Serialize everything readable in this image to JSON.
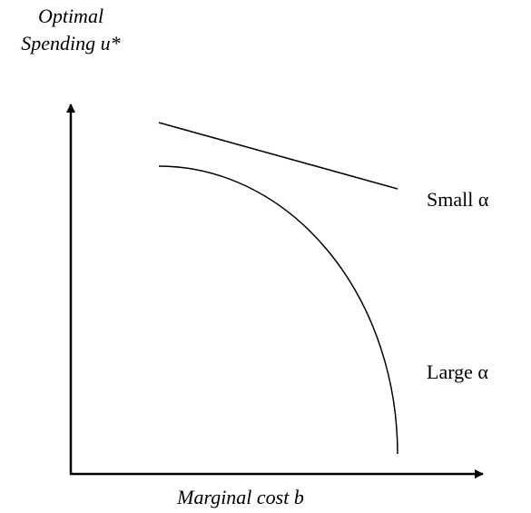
{
  "axes": {
    "y_label": [
      "Optimal",
      "Spending u*"
    ],
    "x_label": "Marginal cost b"
  },
  "curves": [
    {
      "label": "Small α"
    },
    {
      "label": "Large α"
    }
  ]
}
